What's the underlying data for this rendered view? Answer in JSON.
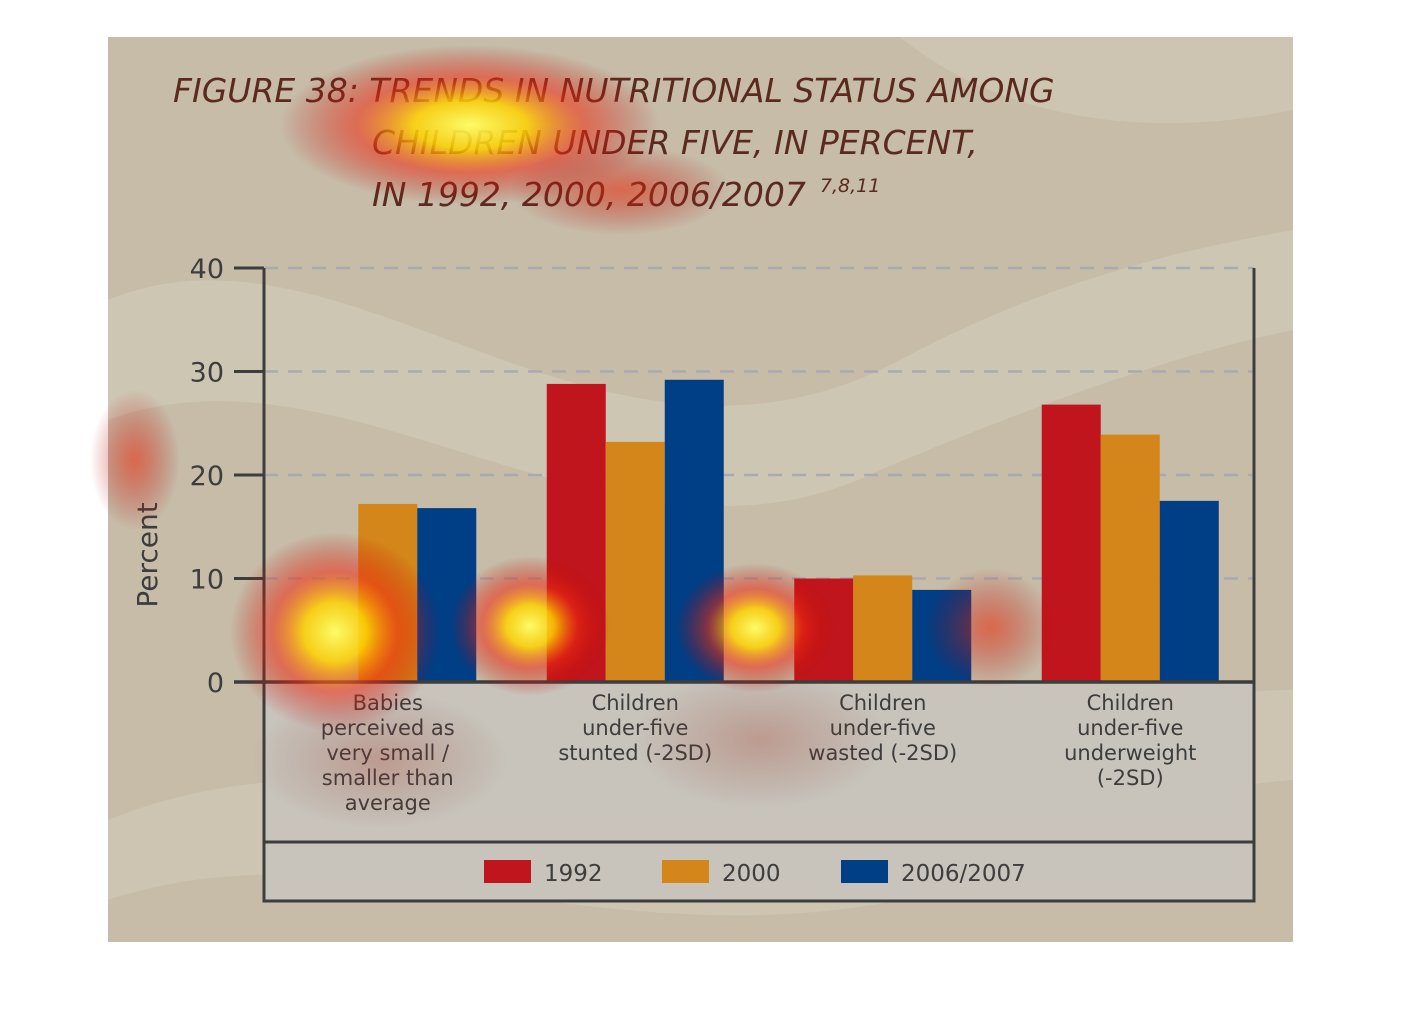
{
  "title": {
    "line1": "FIGURE 38: TRENDS IN NUTRITIONAL STATUS AMONG",
    "line2": "CHILDREN UNDER FIVE, IN PERCENT,",
    "line3": "IN 1992, 2000, 2006/2007",
    "superscript": "7,8,11"
  },
  "colors": {
    "series_1992": "#c0151c",
    "series_2000": "#d4861a",
    "series_2006": "#003e85",
    "background": "#c6bca8",
    "title": "#5b2a1e",
    "axis": "#3d3d3d"
  },
  "heatmap_overlay": true,
  "chart_data": {
    "type": "bar",
    "ylabel": "Percent",
    "xlabel": "",
    "ylim": [
      0,
      40
    ],
    "yticks": [
      0,
      10,
      20,
      30,
      40
    ],
    "grid": "horizontal dashed",
    "legend_position": "bottom",
    "categories": [
      [
        "Babies",
        "perceived as",
        "very small /",
        "smaller than",
        "average"
      ],
      [
        "Children",
        "under-five",
        "stunted (-2SD)"
      ],
      [
        "Children",
        "under-five",
        "wasted (-2SD)"
      ],
      [
        "Children",
        "under-five",
        "underweight",
        "(-2SD)"
      ]
    ],
    "series": [
      {
        "name": "1992",
        "color": "#c0151c",
        "values": [
          null,
          28.8,
          10.0,
          26.8
        ]
      },
      {
        "name": "2000",
        "color": "#d4861a",
        "values": [
          17.2,
          23.2,
          10.3,
          23.9
        ]
      },
      {
        "name": "2006/2007",
        "color": "#003e85",
        "values": [
          16.8,
          29.2,
          8.9,
          17.5
        ]
      }
    ]
  }
}
